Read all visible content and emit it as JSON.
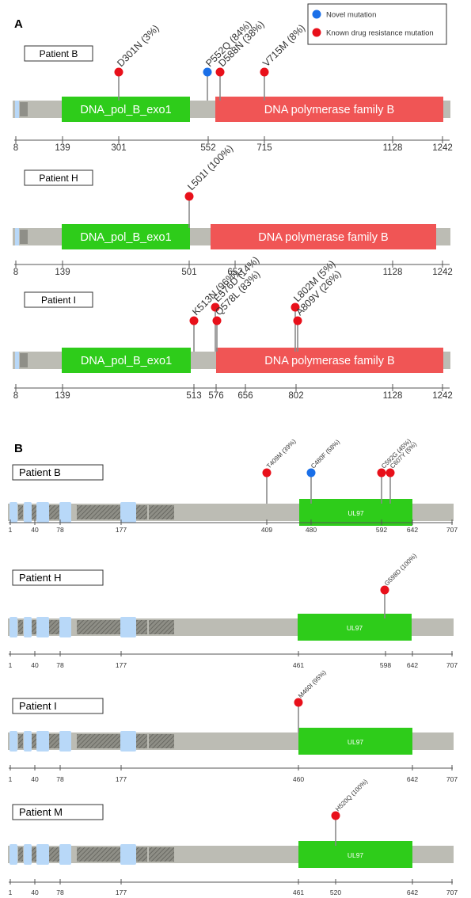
{
  "panels": [
    {
      "letter": "A"
    },
    {
      "letter": "B"
    }
  ],
  "legend": {
    "items": [
      {
        "label": "Novel mutation",
        "color": "#1a6fe8"
      },
      {
        "label": "Known drug resistance mutation",
        "color": "#e8101a"
      }
    ]
  },
  "colors": {
    "backbone": "#bcbcb4",
    "domain_green": "#2ecc1a",
    "domain_red": "#f05555",
    "light_blue": "#b8d8f8",
    "novel": "#1a6fe8",
    "known": "#e8101a"
  },
  "panelA": {
    "protein_length": 1242,
    "tracks": [
      {
        "patient": "Patient B",
        "domains": [
          {
            "label": "DNA_pol_B_exo1",
            "start": 139,
            "end": 480,
            "color": "green"
          },
          {
            "label": "DNA polymerase family B",
            "start": 568,
            "end": 1220,
            "color": "red"
          }
        ],
        "mutations": [
          {
            "label": "D301N (3%)",
            "pos": 301,
            "type": "known"
          },
          {
            "label": "P552Q (84%)",
            "pos": 552,
            "type": "novel"
          },
          {
            "label": "D588N (38%)",
            "pos": 588,
            "type": "known"
          },
          {
            "label": "V715M (8%)",
            "pos": 715,
            "type": "known"
          }
        ],
        "ticks": [
          "8",
          "139",
          "301",
          "552",
          "715",
          "1128",
          "1242"
        ]
      },
      {
        "patient": "Patient H",
        "domains": [
          {
            "label": "DNA_pol_B_exo1",
            "start": 139,
            "end": 480,
            "color": "green"
          },
          {
            "label": "DNA polymerase family B",
            "start": 555,
            "end": 1200,
            "color": "red"
          }
        ],
        "mutations": [
          {
            "label": "L501I (100%)",
            "pos": 501,
            "type": "known"
          }
        ],
        "ticks": [
          "8",
          "139",
          "501",
          "652",
          "1128",
          "1242"
        ]
      },
      {
        "patient": "Patient I",
        "domains": [
          {
            "label": "DNA_pol_B_exo1",
            "start": 139,
            "end": 480,
            "color": "green"
          },
          {
            "label": "DNA polymerase family B",
            "start": 568,
            "end": 1220,
            "color": "red"
          }
        ],
        "mutations": [
          {
            "label": "K513N (96%)",
            "pos": 513,
            "type": "known"
          },
          {
            "label": "E576D (14%)",
            "pos": 576,
            "type": "known",
            "stack": "upper"
          },
          {
            "label": "Q578L (83%)",
            "pos": 578,
            "type": "known",
            "stack": "lower"
          },
          {
            "label": "L802M (5%)",
            "pos": 802,
            "type": "known",
            "stack": "upper"
          },
          {
            "label": "A809V (26%)",
            "pos": 809,
            "type": "known",
            "stack": "lower"
          }
        ],
        "ticks": [
          "8",
          "139",
          "513",
          "576",
          "656",
          "802",
          "1128",
          "1242"
        ]
      }
    ]
  },
  "panelB": {
    "protein_length": 707,
    "tracks": [
      {
        "patient": "Patient B",
        "domain": {
          "label": "UL97",
          "start": 461,
          "end": 642
        },
        "mutations": [
          {
            "label": "T409M (39%)",
            "pos": 409,
            "type": "known"
          },
          {
            "label": "C480F (58%)",
            "pos": 480,
            "type": "novel"
          },
          {
            "label": "C592G (45%)",
            "pos": 592,
            "type": "known"
          },
          {
            "label": "C607Y (5%)",
            "pos": 607,
            "type": "known"
          }
        ],
        "ticks": [
          "1",
          "40",
          "78",
          "177",
          "409",
          "480",
          "592",
          "642",
          "707"
        ]
      },
      {
        "patient": "Patient H",
        "domain": {
          "label": "UL97",
          "start": 461,
          "end": 642
        },
        "mutations": [
          {
            "label": "G598D (100%)",
            "pos": 598,
            "type": "known"
          }
        ],
        "ticks": [
          "1",
          "40",
          "78",
          "177",
          "461",
          "598",
          "642",
          "707"
        ]
      },
      {
        "patient": "Patient I",
        "domain": {
          "label": "UL97",
          "start": 461,
          "end": 642
        },
        "mutations": [
          {
            "label": "M460I (95%)",
            "pos": 460,
            "type": "known"
          }
        ],
        "ticks": [
          "1",
          "40",
          "78",
          "177",
          "460",
          "642",
          "707"
        ]
      },
      {
        "patient": "Patient M",
        "domain": {
          "label": "UL97",
          "start": 461,
          "end": 642
        },
        "mutations": [
          {
            "label": "H520Q (100%)",
            "pos": 520,
            "type": "known"
          }
        ],
        "ticks": [
          "1",
          "40",
          "78",
          "177",
          "461",
          "520",
          "642",
          "707"
        ]
      }
    ]
  }
}
